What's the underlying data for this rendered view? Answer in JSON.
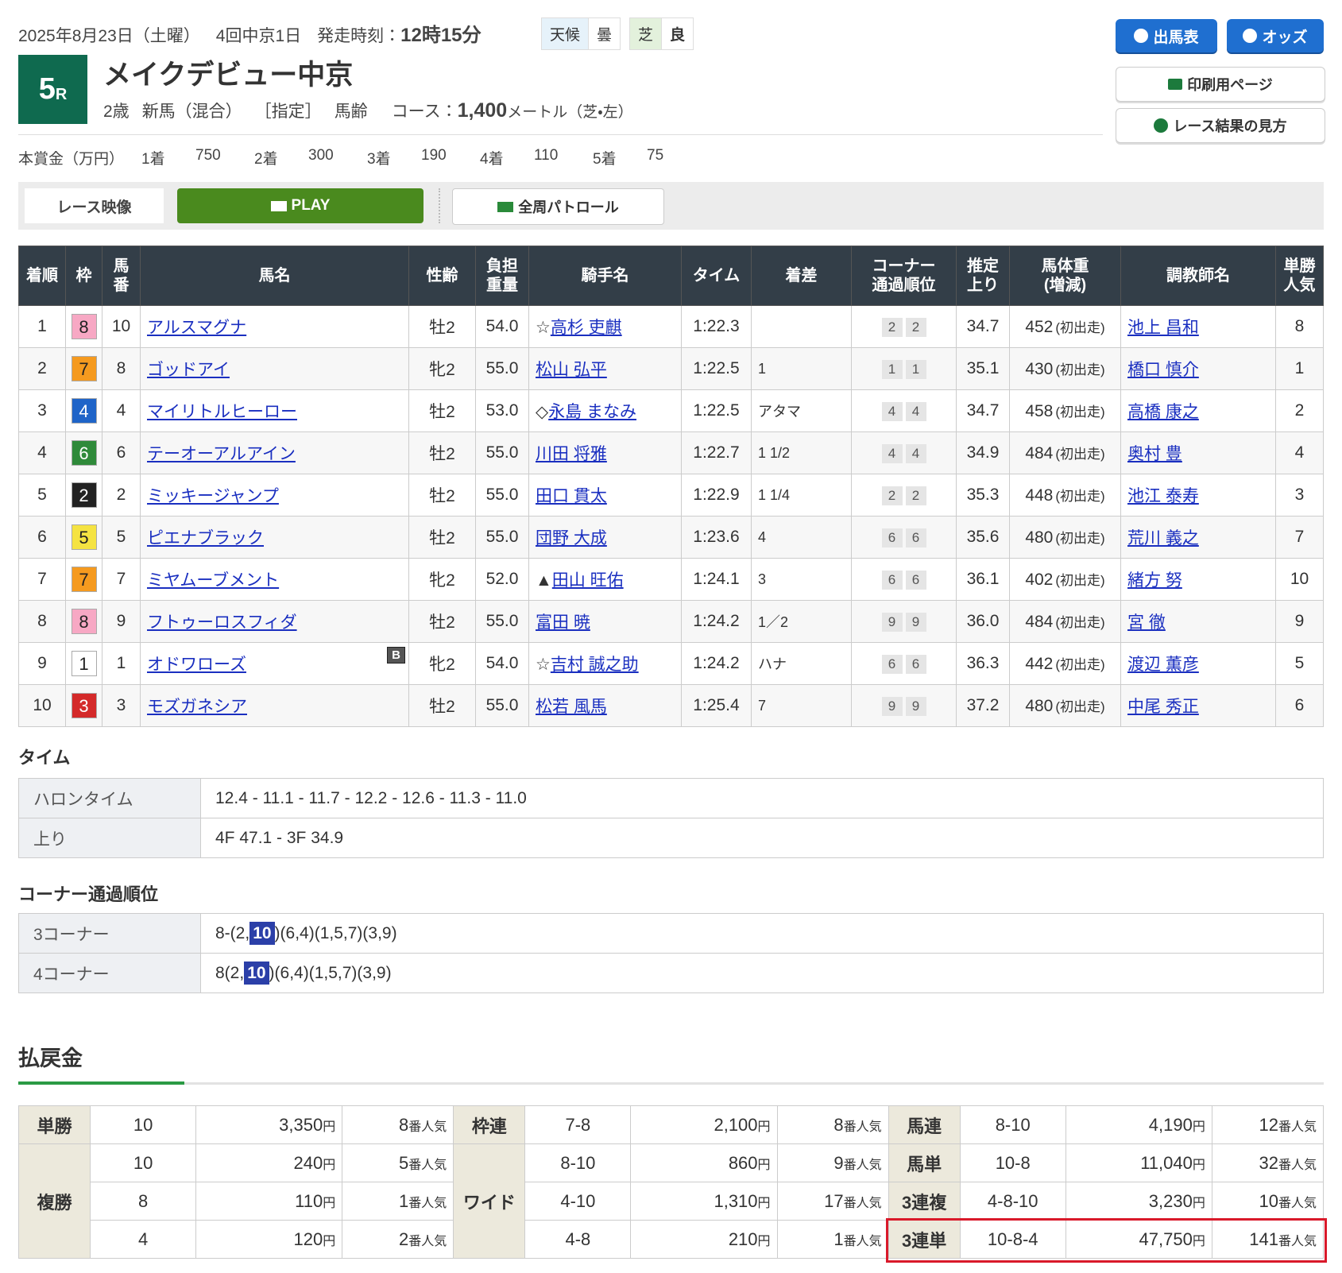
{
  "header": {
    "date": "2025年8月23日（土曜）",
    "meeting": "4回中京1日",
    "post_time_label": "発走時刻：",
    "post_time": "12時15分",
    "weather_label": "天候",
    "weather": "曇",
    "surface_label": "芝",
    "condition": "良",
    "race_number": "5",
    "race_unit": "R",
    "race_name": "メイクデビュー中京",
    "conditions": [
      "2歳",
      "新馬（混合）",
      "［指定］",
      "馬齢"
    ],
    "course_label": "コース：",
    "distance": "1,400",
    "course_unit": "メートル（芝・左）"
  },
  "buttons": {
    "entries": "出馬表",
    "odds": "オッズ",
    "print": "印刷用ページ",
    "guide": "レース結果の見方"
  },
  "prize": {
    "label": "本賞金（万円）",
    "items": [
      {
        "place": "1着",
        "amount": 750
      },
      {
        "place": "2着",
        "amount": 300
      },
      {
        "place": "3着",
        "amount": 190
      },
      {
        "place": "4着",
        "amount": 110
      },
      {
        "place": "5着",
        "amount": 75
      }
    ]
  },
  "video": {
    "label": "レース映像",
    "play": "PLAY",
    "patrol": "全周パトロール"
  },
  "table": {
    "columns": [
      "着順",
      "枠",
      "馬\n番",
      "馬名",
      "性齢",
      "負担\n重量",
      "騎手名",
      "タイム",
      "着差",
      "コーナー\n通過順位",
      "推定\n上り",
      "馬体重\n(増減)",
      "調教師名",
      "単勝\n人気"
    ],
    "frame_colors": [
      "#ffffff",
      "#222222",
      "#d42a2a",
      "#1f64c8",
      "#f5e342",
      "#2f8a3a",
      "#f59a1f",
      "#f7a8c4"
    ],
    "frame_text_colors": [
      "#222222",
      "#ffffff",
      "#ffffff",
      "#ffffff",
      "#222222",
      "#ffffff",
      "#222222",
      "#222222"
    ],
    "rows": [
      {
        "place": 1,
        "frame": 8,
        "number": 10,
        "horse": "アルスマグナ",
        "sex_age": "牡2",
        "weight": "54.0",
        "jockey_mark": "☆",
        "jockey": "高杉 吏麒",
        "time": "1:22.3",
        "corners": [
          2,
          2
        ],
        "last3f": "34.7",
        "body_weight": 452,
        "body_change": "(初出走)",
        "trainer": "池上 昌和",
        "popularity": 8
      },
      {
        "place": 2,
        "frame": 7,
        "number": 8,
        "horse": "ゴッドアイ",
        "sex_age": "牝2",
        "weight": "55.0",
        "jockey": "松山 弘平",
        "time": "1:22.5",
        "margin": "1",
        "corners": [
          1,
          1
        ],
        "last3f": "35.1",
        "body_weight": 430,
        "body_change": "(初出走)",
        "trainer": "橋口 慎介",
        "popularity": 1
      },
      {
        "place": 3,
        "frame": 4,
        "number": 4,
        "horse": "マイリトルヒーロー",
        "sex_age": "牡2",
        "weight": "53.0",
        "jockey_mark": "◇",
        "jockey": "永島 まなみ",
        "time": "1:22.5",
        "margin": "アタマ",
        "corners": [
          4,
          4
        ],
        "last3f": "34.7",
        "body_weight": 458,
        "body_change": "(初出走)",
        "trainer": "高橋 康之",
        "popularity": 2
      },
      {
        "place": 4,
        "frame": 6,
        "number": 6,
        "horse": "テーオーアルアイン",
        "sex_age": "牡2",
        "weight": "55.0",
        "jockey": "川田 将雅",
        "time": "1:22.7",
        "margin": "1 1/2",
        "corners": [
          4,
          4
        ],
        "last3f": "34.9",
        "body_weight": 484,
        "body_change": "(初出走)",
        "trainer": "奥村 豊",
        "popularity": 4
      },
      {
        "place": 5,
        "frame": 2,
        "number": 2,
        "horse": "ミッキージャンプ",
        "sex_age": "牡2",
        "weight": "55.0",
        "jockey": "田口 貫太",
        "time": "1:22.9",
        "margin": "1 1/4",
        "corners": [
          2,
          2
        ],
        "last3f": "35.3",
        "body_weight": 448,
        "body_change": "(初出走)",
        "trainer": "池江 泰寿",
        "popularity": 3
      },
      {
        "place": 6,
        "frame": 5,
        "number": 5,
        "horse": "ピエナブラック",
        "sex_age": "牡2",
        "weight": "55.0",
        "jockey": "団野 大成",
        "time": "1:23.6",
        "margin": "4",
        "corners": [
          6,
          6
        ],
        "last3f": "35.6",
        "body_weight": 480,
        "body_change": "(初出走)",
        "trainer": "荒川 義之",
        "popularity": 7
      },
      {
        "place": 7,
        "frame": 7,
        "number": 7,
        "horse": "ミヤムーブメント",
        "sex_age": "牝2",
        "weight": "52.0",
        "jockey_mark": "▲",
        "jockey": "田山 旺佑",
        "time": "1:24.1",
        "margin": "3",
        "corners": [
          6,
          6
        ],
        "last3f": "36.1",
        "body_weight": 402,
        "body_change": "(初出走)",
        "trainer": "緒方 努",
        "popularity": 10
      },
      {
        "place": 8,
        "frame": 8,
        "number": 9,
        "horse": "フトゥーロスフィダ",
        "sex_age": "牡2",
        "weight": "55.0",
        "jockey": "富田 暁",
        "time": "1:24.2",
        "margin": "1／2",
        "corners": [
          9,
          9
        ],
        "last3f": "36.0",
        "body_weight": 484,
        "body_change": "(初出走)",
        "trainer": "宮 徹",
        "popularity": 9
      },
      {
        "place": 9,
        "frame": 1,
        "number": 1,
        "horse": "オドワローズ",
        "blinker": "B",
        "sex_age": "牝2",
        "weight": "54.0",
        "jockey_mark": "☆",
        "jockey": "吉村 誠之助",
        "time": "1:24.2",
        "margin": "ハナ",
        "corners": [
          6,
          6
        ],
        "last3f": "36.3",
        "body_weight": 442,
        "body_change": "(初出走)",
        "trainer": "渡辺 薫彦",
        "popularity": 5
      },
      {
        "place": 10,
        "frame": 3,
        "number": 3,
        "horse": "モズガネシア",
        "sex_age": "牡2",
        "weight": "55.0",
        "jockey": "松若 風馬",
        "time": "1:25.4",
        "margin": "7",
        "corners": [
          9,
          9
        ],
        "last3f": "37.2",
        "body_weight": 480,
        "body_change": "(初出走)",
        "trainer": "中尾 秀正",
        "popularity": 6
      }
    ]
  },
  "times": {
    "title": "タイム",
    "rows": [
      {
        "label": "ハロンタイム",
        "value": "12.4 - 11.1 - 11.7 - 12.2 - 12.6 - 11.3 - 11.0"
      },
      {
        "label": "上り",
        "value": "4F 47.1 - 3F 34.9"
      }
    ]
  },
  "corners": {
    "title": "コーナー通過順位",
    "rows": [
      {
        "label": "3コーナー",
        "before": "8-(2,",
        "highlight": "10",
        "after": ")(6,4)(1,5,7)(3,9)"
      },
      {
        "label": "4コーナー",
        "before": "8(2,",
        "highlight": "10",
        "after": ")(6,4)(1,5,7)(3,9)"
      }
    ]
  },
  "payout": {
    "title": "払戻金",
    "yen_unit": "円",
    "pop_unit": "番人気",
    "groups": [
      [
        {
          "name": "単勝",
          "entries": [
            {
              "combo": "10",
              "amount": "3,350",
              "popularity": 8
            }
          ]
        },
        {
          "name": "複勝",
          "entries": [
            {
              "combo": "10",
              "amount": "240",
              "popularity": 5
            },
            {
              "combo": "8",
              "amount": "110",
              "popularity": 1
            },
            {
              "combo": "4",
              "amount": "120",
              "popularity": 2
            }
          ]
        }
      ],
      [
        {
          "name": "枠連",
          "entries": [
            {
              "combo": "7-8",
              "amount": "2,100",
              "popularity": 8
            }
          ]
        },
        {
          "name": "ワイド",
          "entries": [
            {
              "combo": "8-10",
              "amount": "860",
              "popularity": 9
            },
            {
              "combo": "4-10",
              "amount": "1,310",
              "popularity": 17
            },
            {
              "combo": "4-8",
              "amount": "210",
              "popularity": 1
            }
          ]
        }
      ],
      [
        {
          "name": "馬連",
          "entries": [
            {
              "combo": "8-10",
              "amount": "4,190",
              "popularity": 12
            }
          ]
        },
        {
          "name": "馬単",
          "entries": [
            {
              "combo": "10-8",
              "amount": "11,040",
              "popularity": 32
            }
          ]
        },
        {
          "name": "3連複",
          "entries": [
            {
              "combo": "4-8-10",
              "amount": "3,230",
              "popularity": 10
            }
          ]
        },
        {
          "name": "3連単",
          "highlight": true,
          "entries": [
            {
              "combo": "10-8-4",
              "amount": "47,750",
              "popularity": 141
            }
          ]
        }
      ]
    ]
  }
}
